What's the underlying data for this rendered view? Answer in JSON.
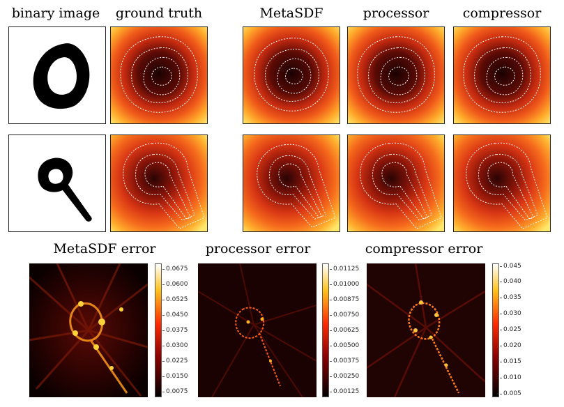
{
  "headers": {
    "binary": "binary image",
    "ground_truth": "ground truth",
    "metasdf": "MetaSDF",
    "processor": "processor",
    "compressor": "compressor"
  },
  "error_titles": {
    "metasdf": "MetaSDF error",
    "processor": "processor error",
    "compressor": "compressor error"
  },
  "colorbars": {
    "metasdf": [
      "0.0675",
      "0.0600",
      "0.0525",
      "0.0450",
      "0.0375",
      "0.0300",
      "0.0225",
      "0.0150",
      "0.0075"
    ],
    "processor": [
      "0.01125",
      "0.01000",
      "0.00875",
      "0.00750",
      "0.00625",
      "0.00500",
      "0.00375",
      "0.00250",
      "0.00125"
    ],
    "compressor": [
      "0.045",
      "0.040",
      "0.035",
      "0.030",
      "0.025",
      "0.020",
      "0.015",
      "0.010",
      "0.005"
    ]
  },
  "colors": {
    "heat_outer": "#ffe14a",
    "heat_mid": "#e8401a",
    "heat_inner": "#2a0505",
    "contour": "#ffffff"
  }
}
